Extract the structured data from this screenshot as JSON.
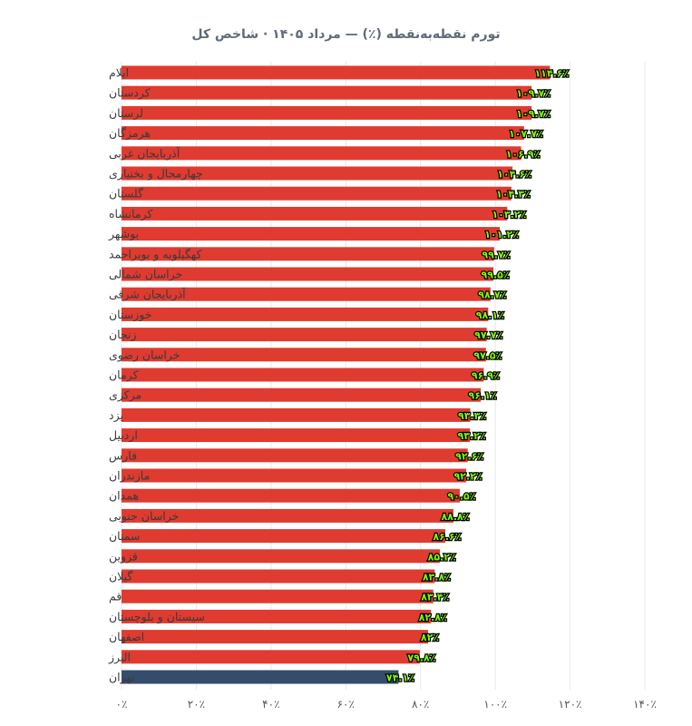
{
  "title": "تورم نقطه‌به‌نقطه (٪) — مرداد ۱۴۰۵ · شاخص کل",
  "colors": {
    "bar": "#df3b30",
    "highlight": "#344d6b",
    "grid": "#e8e8e8"
  },
  "chart_data": {
    "type": "bar",
    "orientation": "horizontal",
    "title": "تورم نقطه‌به‌نقطه (٪) — مرداد ۱۴۰۵ · شاخص کل",
    "categories": [
      "ایلام",
      "کردستان",
      "لرستان",
      "هرمزگان",
      "آذربایجان غربی",
      "چهارمحال و بختیاری",
      "گلستان",
      "کرمانشاه",
      "بوشهر",
      "کهگیلویه و بویراحمد",
      "خراسان شمالی",
      "آذربایجان شرقی",
      "خوزستان",
      "زنجان",
      "خراسان رضوی",
      "کرمان",
      "مرکزی",
      "یزد",
      "اردبیل",
      "فارس",
      "مازندران",
      "همدان",
      "خراسان جنوبی",
      "سمنان",
      "قزوین",
      "گیلان",
      "قم",
      "سیستان و بلوچستان",
      "اصفهان",
      "البرز",
      "تهران"
    ],
    "values": [
      114.6,
      109.7,
      109.7,
      107.7,
      106.9,
      104.6,
      104.3,
      103.2,
      101.2,
      99.7,
      99.5,
      98.7,
      98.1,
      97.7,
      97.5,
      96.9,
      96.1,
      93.3,
      93.2,
      92.6,
      92.2,
      90.5,
      88.8,
      86.6,
      85.2,
      83.8,
      83.4,
      82.8,
      82,
      79.8,
      74.1
    ],
    "value_labels": [
      "۱۱۴.۶٪",
      "۱۰۹.۷٪",
      "۱۰۹.۷٪",
      "۱۰۷.۷٪",
      "۱۰۶.۹٪",
      "۱۰۴.۶٪",
      "۱۰۴.۳٪",
      "۱۰۳.۲٪",
      "۱۰۱.۲٪",
      "۹۹.۷٪",
      "۹۹.۵٪",
      "۹۸.۷٪",
      "۹۸.۱٪",
      "۹۷.۷٪",
      "۹۷.۵٪",
      "۹۶.۹٪",
      "۹۶.۱٪",
      "۹۳.۳٪",
      "۹۳.۲٪",
      "۹۲.۶٪",
      "۹۲.۲٪",
      "۹۰.۵٪",
      "۸۸.۸٪",
      "۸۶.۶٪",
      "۸۵.۲٪",
      "۸۳.۸٪",
      "۸۳.۴٪",
      "۸۲.۸٪",
      "۸۲٪",
      "۷۹.۸٪",
      "۷۴.۱٪"
    ],
    "highlight_category": "تهران",
    "x_ticks": [
      0,
      20,
      40,
      60,
      80,
      100,
      120,
      140
    ],
    "x_tick_labels": [
      "۰٪",
      "۲۰٪",
      "۴۰٪",
      "۶۰٪",
      "۸۰٪",
      "۱۰۰٪",
      "۱۲۰٪",
      "۱۴۰٪"
    ],
    "xlim": [
      0,
      140
    ],
    "grid": true,
    "legend": "none"
  }
}
